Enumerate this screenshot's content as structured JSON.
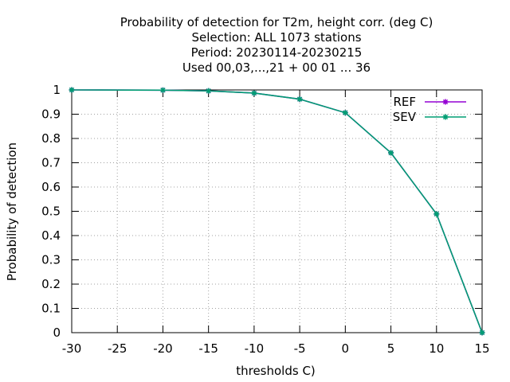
{
  "chart_data": {
    "type": "line",
    "title_lines": [
      "Probability of detection  for T2m, height corr. (deg C)",
      "Selection: ALL   1073 stations",
      "Period: 20230114-20230215",
      "Used  00,03,...,21  + 00 01 ... 36"
    ],
    "xlabel": "thresholds C)",
    "ylabel": "Probability of detection",
    "xlim": [
      -30,
      15
    ],
    "ylim": [
      0,
      1
    ],
    "xticks": [
      -30,
      -25,
      -20,
      -15,
      -10,
      -5,
      0,
      5,
      10,
      15
    ],
    "yticks": [
      0,
      0.1,
      0.2,
      0.3,
      0.4,
      0.5,
      0.6,
      0.7,
      0.8,
      0.9,
      1
    ],
    "ytick_labels": [
      "0",
      "0.1",
      "0.2",
      "0.3",
      "0.4",
      "0.5",
      "0.6",
      "0.7",
      "0.8",
      "0.9",
      "1"
    ],
    "grid": true,
    "legend_position": "top-right",
    "x": [
      -30,
      -20,
      -15,
      -10,
      -5,
      0,
      5,
      10,
      15
    ],
    "series": [
      {
        "name": "REF",
        "color": "#9400d3",
        "values": [
          1.0,
          0.999,
          0.996,
          0.987,
          0.962,
          0.906,
          0.741,
          0.489,
          0.0
        ]
      },
      {
        "name": "SEV",
        "color": "#009e73",
        "values": [
          1.0,
          0.999,
          0.996,
          0.987,
          0.962,
          0.906,
          0.741,
          0.489,
          0.0
        ]
      }
    ]
  }
}
